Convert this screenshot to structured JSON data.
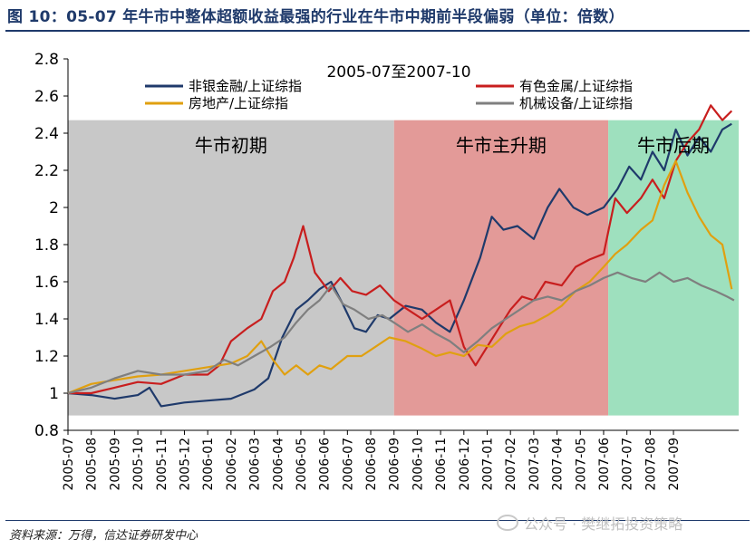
{
  "figure": {
    "title": "图 10：05-07 年牛市中整体超额收益最强的行业在牛市中期前半段偏弱（单位：倍数）",
    "source": "资料来源：万得，信达证券研发中心",
    "watermark": "公众号 · 樊继拓投资策略"
  },
  "chart_data": {
    "type": "line",
    "title": "2005-07至2007-10",
    "ylim": [
      0.8,
      2.8
    ],
    "yticks": [
      "0.8",
      "1",
      "1.2",
      "1.4",
      "1.6",
      "1.8",
      "2",
      "2.2",
      "2.4",
      "2.6",
      "2.8"
    ],
    "x_labels": [
      "2005-07",
      "2005-08",
      "2005-09",
      "2005-10",
      "2005-11",
      "2005-12",
      "2006-01",
      "2006-02",
      "2006-03",
      "2006-04",
      "2006-05",
      "2006-06",
      "2006-07",
      "2006-08",
      "2006-09",
      "2006-10",
      "2006-11",
      "2006-12",
      "2007-01",
      "2007-02",
      "2007-03",
      "2007-04",
      "2007-05",
      "2007-06",
      "2007-07",
      "2007-08",
      "2007-09"
    ],
    "phases": [
      {
        "name": "牛市初期",
        "start": 0,
        "end": 14.0,
        "color": "#c8c8c8"
      },
      {
        "name": "牛市主升期",
        "start": 14.0,
        "end": 23.2,
        "color": "#e39a98"
      },
      {
        "name": "牛市后期",
        "start": 23.2,
        "end": 28.8,
        "color": "#9ee0be"
      }
    ],
    "series": [
      {
        "name": "非银金融/上证综指",
        "color": "#1f3a6b",
        "points": [
          [
            0,
            1.0
          ],
          [
            1,
            0.99
          ],
          [
            2,
            0.97
          ],
          [
            3,
            0.99
          ],
          [
            3.5,
            1.03
          ],
          [
            4,
            0.93
          ],
          [
            5,
            0.95
          ],
          [
            6,
            0.96
          ],
          [
            7,
            0.97
          ],
          [
            8,
            1.02
          ],
          [
            8.6,
            1.08
          ],
          [
            9.2,
            1.3
          ],
          [
            9.8,
            1.45
          ],
          [
            10.3,
            1.5
          ],
          [
            10.8,
            1.56
          ],
          [
            11.3,
            1.6
          ],
          [
            11.8,
            1.48
          ],
          [
            12.3,
            1.35
          ],
          [
            12.8,
            1.33
          ],
          [
            13.3,
            1.42
          ],
          [
            13.8,
            1.4
          ],
          [
            14.5,
            1.47
          ],
          [
            15.2,
            1.45
          ],
          [
            15.8,
            1.38
          ],
          [
            16.4,
            1.33
          ],
          [
            17,
            1.5
          ],
          [
            17.7,
            1.73
          ],
          [
            18.2,
            1.95
          ],
          [
            18.7,
            1.88
          ],
          [
            19.3,
            1.9
          ],
          [
            20,
            1.83
          ],
          [
            20.6,
            2.0
          ],
          [
            21.1,
            2.1
          ],
          [
            21.7,
            2.0
          ],
          [
            22.3,
            1.96
          ],
          [
            23,
            2.0
          ],
          [
            23.6,
            2.1
          ],
          [
            24.1,
            2.22
          ],
          [
            24.6,
            2.15
          ],
          [
            25.1,
            2.3
          ],
          [
            25.6,
            2.2
          ],
          [
            26.1,
            2.42
          ],
          [
            26.6,
            2.28
          ],
          [
            27.1,
            2.38
          ],
          [
            27.6,
            2.3
          ],
          [
            28.1,
            2.42
          ],
          [
            28.5,
            2.45
          ]
        ]
      },
      {
        "name": "有色金属/上证综指",
        "color": "#c81e1e",
        "points": [
          [
            0,
            1.0
          ],
          [
            1,
            1.0
          ],
          [
            2,
            1.03
          ],
          [
            3,
            1.06
          ],
          [
            4,
            1.05
          ],
          [
            5,
            1.1
          ],
          [
            6,
            1.1
          ],
          [
            6.5,
            1.15
          ],
          [
            7,
            1.28
          ],
          [
            7.7,
            1.35
          ],
          [
            8.3,
            1.4
          ],
          [
            8.8,
            1.55
          ],
          [
            9.3,
            1.6
          ],
          [
            9.7,
            1.73
          ],
          [
            10.1,
            1.9
          ],
          [
            10.6,
            1.65
          ],
          [
            11.2,
            1.55
          ],
          [
            11.7,
            1.62
          ],
          [
            12.2,
            1.55
          ],
          [
            12.8,
            1.53
          ],
          [
            13.4,
            1.58
          ],
          [
            14,
            1.5
          ],
          [
            14.6,
            1.45
          ],
          [
            15.2,
            1.4
          ],
          [
            15.8,
            1.45
          ],
          [
            16.4,
            1.5
          ],
          [
            17,
            1.25
          ],
          [
            17.5,
            1.15
          ],
          [
            18,
            1.25
          ],
          [
            18.5,
            1.35
          ],
          [
            19,
            1.45
          ],
          [
            19.5,
            1.52
          ],
          [
            20,
            1.5
          ],
          [
            20.5,
            1.6
          ],
          [
            21.2,
            1.58
          ],
          [
            21.8,
            1.68
          ],
          [
            22.4,
            1.72
          ],
          [
            23,
            1.75
          ],
          [
            23.5,
            2.05
          ],
          [
            24,
            1.97
          ],
          [
            24.6,
            2.05
          ],
          [
            25.1,
            2.15
          ],
          [
            25.6,
            2.05
          ],
          [
            26.1,
            2.25
          ],
          [
            26.6,
            2.35
          ],
          [
            27.1,
            2.42
          ],
          [
            27.6,
            2.55
          ],
          [
            28.1,
            2.47
          ],
          [
            28.5,
            2.52
          ]
        ]
      },
      {
        "name": "房地产/上证综指",
        "color": "#e0a010",
        "points": [
          [
            0,
            1.0
          ],
          [
            1,
            1.05
          ],
          [
            2,
            1.07
          ],
          [
            3,
            1.09
          ],
          [
            4,
            1.1
          ],
          [
            5,
            1.12
          ],
          [
            6,
            1.14
          ],
          [
            7,
            1.16
          ],
          [
            7.7,
            1.2
          ],
          [
            8.3,
            1.28
          ],
          [
            8.8,
            1.18
          ],
          [
            9.3,
            1.1
          ],
          [
            9.8,
            1.15
          ],
          [
            10.3,
            1.1
          ],
          [
            10.8,
            1.15
          ],
          [
            11.3,
            1.13
          ],
          [
            12,
            1.2
          ],
          [
            12.6,
            1.2
          ],
          [
            13.2,
            1.25
          ],
          [
            13.8,
            1.3
          ],
          [
            14.5,
            1.28
          ],
          [
            15.2,
            1.24
          ],
          [
            15.8,
            1.2
          ],
          [
            16.4,
            1.22
          ],
          [
            17,
            1.2
          ],
          [
            17.6,
            1.26
          ],
          [
            18.2,
            1.25
          ],
          [
            18.8,
            1.32
          ],
          [
            19.4,
            1.36
          ],
          [
            20,
            1.38
          ],
          [
            20.6,
            1.42
          ],
          [
            21.2,
            1.47
          ],
          [
            21.8,
            1.55
          ],
          [
            22.4,
            1.6
          ],
          [
            23,
            1.68
          ],
          [
            23.5,
            1.75
          ],
          [
            24,
            1.8
          ],
          [
            24.6,
            1.88
          ],
          [
            25.1,
            1.93
          ],
          [
            25.6,
            2.12
          ],
          [
            26.1,
            2.25
          ],
          [
            26.6,
            2.08
          ],
          [
            27.1,
            1.95
          ],
          [
            27.6,
            1.85
          ],
          [
            28.1,
            1.8
          ],
          [
            28.5,
            1.56
          ]
        ]
      },
      {
        "name": "机械设备/上证综指",
        "color": "#7f7f7f",
        "points": [
          [
            0,
            1.0
          ],
          [
            1,
            1.03
          ],
          [
            2,
            1.08
          ],
          [
            3,
            1.12
          ],
          [
            4,
            1.1
          ],
          [
            5,
            1.1
          ],
          [
            6,
            1.12
          ],
          [
            6.7,
            1.18
          ],
          [
            7.3,
            1.15
          ],
          [
            8,
            1.2
          ],
          [
            8.7,
            1.25
          ],
          [
            9.3,
            1.3
          ],
          [
            9.8,
            1.38
          ],
          [
            10.3,
            1.45
          ],
          [
            10.8,
            1.5
          ],
          [
            11.3,
            1.58
          ],
          [
            11.8,
            1.48
          ],
          [
            12.3,
            1.45
          ],
          [
            12.9,
            1.4
          ],
          [
            13.5,
            1.42
          ],
          [
            14,
            1.38
          ],
          [
            14.6,
            1.33
          ],
          [
            15.2,
            1.37
          ],
          [
            15.8,
            1.32
          ],
          [
            16.4,
            1.28
          ],
          [
            17,
            1.22
          ],
          [
            17.6,
            1.28
          ],
          [
            18.2,
            1.35
          ],
          [
            18.8,
            1.4
          ],
          [
            19.4,
            1.45
          ],
          [
            20,
            1.5
          ],
          [
            20.6,
            1.52
          ],
          [
            21.2,
            1.5
          ],
          [
            21.8,
            1.55
          ],
          [
            22.4,
            1.58
          ],
          [
            23,
            1.62
          ],
          [
            23.6,
            1.65
          ],
          [
            24.2,
            1.62
          ],
          [
            24.8,
            1.6
          ],
          [
            25.4,
            1.65
          ],
          [
            26,
            1.6
          ],
          [
            26.6,
            1.62
          ],
          [
            27.2,
            1.58
          ],
          [
            27.8,
            1.55
          ],
          [
            28.3,
            1.52
          ],
          [
            28.6,
            1.5
          ]
        ]
      }
    ]
  }
}
